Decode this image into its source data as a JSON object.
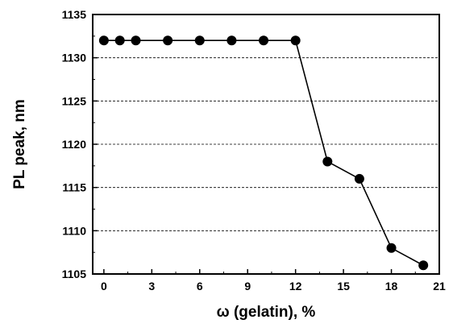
{
  "chart_data": {
    "type": "line",
    "xlabel": "ω (gelatin), %",
    "ylabel": "PL peak, nm",
    "xlim": [
      -0.7,
      21
    ],
    "ylim": [
      1105,
      1135
    ],
    "x_ticks": [
      0,
      3,
      6,
      9,
      12,
      15,
      18,
      21
    ],
    "y_ticks": [
      1105,
      1110,
      1115,
      1120,
      1125,
      1130,
      1135
    ],
    "grid": "horizontal dashed",
    "series": [
      {
        "x": [
          0,
          1,
          2,
          4,
          6,
          8,
          10,
          12,
          14,
          16,
          18,
          20
        ],
        "y": [
          1132,
          1132,
          1132,
          1132,
          1132,
          1132,
          1132,
          1132,
          1118,
          1116,
          1108,
          1106
        ],
        "color": "#000000",
        "marker": "filled-circle"
      }
    ]
  }
}
